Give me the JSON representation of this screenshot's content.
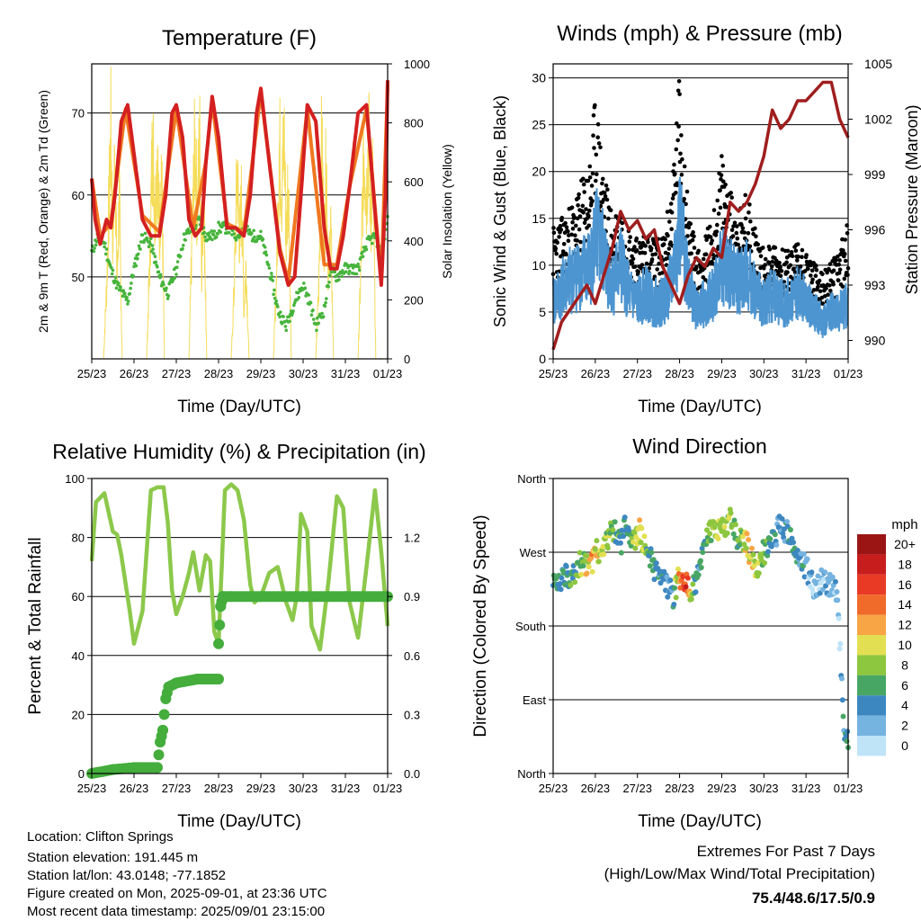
{
  "chart_data": [
    {
      "type": "line",
      "title": "Temperature (F)",
      "xlabel": "Time (Day/UTC)",
      "ylabel": "2m & 9m T (Red, Orange) & 2m Td (Green)",
      "y2label": "Solar Insolation (Yellow)",
      "x_ticks": [
        "25/23",
        "26/23",
        "27/23",
        "28/23",
        "29/23",
        "30/23",
        "31/23",
        "01/23"
      ],
      "ylim": [
        40,
        76
      ],
      "y_ticks": [
        50,
        60,
        70
      ],
      "y2lim": [
        0,
        1000
      ],
      "y2_ticks": [
        0,
        200,
        400,
        600,
        800,
        1000
      ],
      "grid": true,
      "colors": {
        "t2m": "#d42020",
        "t9m": "#f07820",
        "td": "#46b43c",
        "solar": "#f5dc5a"
      },
      "series": [
        {
          "name": "2m T",
          "x": [
            0,
            0.08,
            0.2,
            0.35,
            0.45,
            0.55,
            0.7,
            0.85,
            1.0,
            1.2,
            1.4,
            1.6,
            1.75,
            1.9,
            2.0,
            2.15,
            2.3,
            2.45,
            2.6,
            2.7,
            2.85,
            3.0,
            3.2,
            3.4,
            3.6,
            3.75,
            3.9,
            4.0,
            4.2,
            4.45,
            4.65,
            4.8,
            4.95,
            5.1,
            5.3,
            5.5,
            5.65,
            5.8,
            5.95,
            6.1,
            6.3,
            6.5,
            6.7,
            6.85,
            6.95,
            7.0
          ],
          "values": [
            62,
            57,
            54,
            57,
            56,
            60,
            69,
            71,
            65,
            57,
            55,
            55,
            60,
            70,
            71,
            67,
            57,
            55,
            56,
            64,
            72,
            67,
            56,
            56,
            55,
            60,
            70,
            73,
            64,
            53,
            49,
            50,
            60,
            71,
            69,
            56,
            51,
            51,
            55,
            61,
            70,
            71,
            58,
            49,
            60,
            74
          ]
        },
        {
          "name": "9m T",
          "x": [
            0,
            0.2,
            0.45,
            0.8,
            1.2,
            1.6,
            2.0,
            2.4,
            2.7,
            2.85,
            3.2,
            3.6,
            4.0,
            4.45,
            4.65,
            5.1,
            5.5,
            5.8,
            6.1,
            6.5,
            6.85,
            7.0
          ],
          "values": [
            62,
            55,
            56.5,
            70.5,
            57.5,
            55.5,
            70.5,
            56,
            64,
            71.5,
            56.5,
            55.5,
            72.5,
            53.5,
            49.5,
            70.5,
            51.5,
            51.5,
            61,
            70.5,
            49.5,
            73.5
          ]
        },
        {
          "name": "2m Td",
          "x": [
            0,
            0.15,
            0.3,
            0.45,
            0.6,
            0.85,
            1.0,
            1.2,
            1.4,
            1.6,
            1.8,
            2.0,
            2.2,
            2.4,
            2.55,
            2.7,
            2.9,
            3.0,
            3.2,
            3.4,
            3.6,
            3.8,
            4.0,
            4.2,
            4.4,
            4.6,
            4.8,
            5.0,
            5.15,
            5.3,
            5.5,
            5.65,
            5.8,
            6.0,
            6.3,
            6.5,
            6.7,
            6.85,
            7.0
          ],
          "values": [
            53,
            55,
            54,
            51,
            49,
            47,
            51,
            55,
            54,
            50,
            48,
            51,
            55,
            56,
            57,
            55,
            55,
            56,
            56,
            55,
            56,
            55,
            55,
            51,
            46,
            44,
            47,
            49,
            47,
            44,
            46,
            51,
            50,
            51,
            51,
            54,
            55,
            53,
            57
          ]
        },
        {
          "name": "Solar Insolation",
          "axis": "y2",
          "x": [
            0,
            0.28,
            0.35,
            0.4,
            0.45,
            0.5,
            0.55,
            0.6,
            0.65,
            0.72,
            1.0,
            1.3,
            1.37,
            1.44,
            1.5,
            1.55,
            1.6,
            1.65,
            1.72,
            2.0,
            2.3,
            2.37,
            2.44,
            2.5,
            2.55,
            2.6,
            2.65,
            2.72,
            3.0,
            3.3,
            3.37,
            3.44,
            3.5,
            3.55,
            3.6,
            3.65,
            3.72,
            4.0,
            4.3,
            4.37,
            4.44,
            4.5,
            4.55,
            4.6,
            4.65,
            4.72,
            5.0,
            5.3,
            5.37,
            5.44,
            5.5,
            5.55,
            5.6,
            5.65,
            5.72,
            6.0,
            6.3,
            6.37,
            6.44,
            6.5,
            6.55,
            6.6,
            6.65,
            6.72,
            7.0
          ],
          "values": [
            0,
            0,
            300,
            600,
            950,
            500,
            900,
            300,
            700,
            0,
            0,
            0,
            400,
            950,
            600,
            900,
            500,
            850,
            0,
            0,
            0,
            500,
            900,
            600,
            950,
            400,
            700,
            0,
            0,
            0,
            300,
            800,
            500,
            700,
            200,
            400,
            0,
            0,
            0,
            350,
            900,
            700,
            950,
            500,
            800,
            0,
            0,
            0,
            300,
            900,
            500,
            850,
            300,
            600,
            0,
            0,
            0,
            400,
            900,
            700,
            950,
            600,
            800,
            0,
            0
          ]
        }
      ]
    },
    {
      "type": "scatter",
      "title": "Winds (mph) & Pressure (mb)",
      "xlabel": "Time (Day/UTC)",
      "ylabel": "Sonic Wind & Gust (Blue, Black)",
      "y2label": "Station Pressure (Maroon)",
      "x_ticks": [
        "25/23",
        "26/23",
        "27/23",
        "28/23",
        "29/23",
        "30/23",
        "31/23",
        "01/23"
      ],
      "ylim": [
        0,
        31.5
      ],
      "y_ticks": [
        0,
        5,
        10,
        15,
        20,
        25,
        30
      ],
      "y2lim": [
        989,
        1005
      ],
      "y2_ticks": [
        990,
        993,
        996,
        999,
        1002,
        1005
      ],
      "grid": true,
      "colors": {
        "wind": "#4d95d0",
        "gust": "#000000",
        "pressure": "#a01e1e"
      },
      "series": [
        {
          "name": "Sonic Wind",
          "x": [
            0,
            0.3,
            0.6,
            0.9,
            1.0,
            1.2,
            1.4,
            1.6,
            1.8,
            2.0,
            2.2,
            2.4,
            2.6,
            2.8,
            3.0,
            3.2,
            3.4,
            3.6,
            3.8,
            4.0,
            4.2,
            4.4,
            4.6,
            4.8,
            5.0,
            5.2,
            5.4,
            5.6,
            5.8,
            6.0,
            6.2,
            6.4,
            6.6,
            6.8,
            7.0
          ],
          "values": [
            6,
            8,
            9,
            10,
            13,
            11,
            8,
            10,
            7,
            6,
            7,
            6,
            6,
            8,
            14,
            9,
            5,
            6,
            7,
            10,
            9,
            8,
            9,
            7,
            6,
            7,
            6,
            6,
            7,
            6,
            5,
            4,
            5,
            5,
            6
          ]
        },
        {
          "name": "Gust",
          "x": [
            0,
            0.3,
            0.6,
            0.9,
            1.0,
            1.2,
            1.4,
            1.6,
            1.8,
            2.0,
            2.2,
            2.4,
            2.6,
            2.8,
            3.0,
            3.2,
            3.4,
            3.6,
            3.8,
            4.0,
            4.2,
            4.4,
            4.6,
            4.8,
            5.0,
            5.2,
            5.4,
            5.6,
            5.8,
            6.0,
            6.2,
            6.4,
            6.6,
            6.8,
            7.0
          ],
          "values": [
            11,
            12,
            14,
            17,
            22,
            16,
            12,
            13,
            11,
            10,
            11,
            10,
            10,
            14,
            24,
            13,
            9,
            10,
            12,
            17,
            14,
            12,
            14,
            11,
            9,
            10,
            9,
            9,
            10,
            9,
            8,
            7,
            8,
            9,
            12
          ]
        },
        {
          "name": "Station Pressure",
          "axis": "y2",
          "x": [
            0,
            0.2,
            0.5,
            0.8,
            1.0,
            1.2,
            1.4,
            1.6,
            1.8,
            2.0,
            2.2,
            2.4,
            2.6,
            2.8,
            3.0,
            3.2,
            3.4,
            3.6,
            3.8,
            4.0,
            4.2,
            4.4,
            4.6,
            4.8,
            5.0,
            5.2,
            5.4,
            5.6,
            5.8,
            6.0,
            6.2,
            6.4,
            6.6,
            6.8,
            7.0
          ],
          "values": [
            989.5,
            991,
            992,
            993,
            992,
            993.5,
            995,
            997,
            996,
            996.5,
            995.5,
            996,
            994,
            993,
            992,
            993.5,
            994.5,
            994,
            995,
            994.5,
            997.5,
            997,
            997.5,
            998.5,
            1000,
            1002.5,
            1001.5,
            1002,
            1003,
            1003,
            1003.5,
            1004,
            1004,
            1002,
            1001
          ]
        }
      ]
    },
    {
      "type": "line",
      "title": "Relative Humidity (%) & Precipitation (in)",
      "xlabel": "Time (Day/UTC)",
      "ylabel": "Percent & Total Rainfall",
      "x_ticks": [
        "25/23",
        "26/23",
        "27/23",
        "28/23",
        "29/23",
        "30/23",
        "31/23",
        "01/23"
      ],
      "ylim": [
        0,
        100
      ],
      "y_ticks": [
        0,
        20,
        40,
        60,
        80,
        100
      ],
      "y2lim": [
        0,
        1.5
      ],
      "y2_ticks": [
        "0.0",
        "0.3",
        "0.6",
        "0.9",
        "1.2"
      ],
      "grid": true,
      "colors": {
        "rh": "#8cc84b",
        "rain": "#44ad3c"
      },
      "series": [
        {
          "name": "Relative Humidity",
          "x": [
            0,
            0.1,
            0.3,
            0.5,
            0.6,
            0.7,
            0.9,
            1.0,
            1.2,
            1.4,
            1.55,
            1.7,
            1.8,
            1.9,
            2.0,
            2.15,
            2.3,
            2.4,
            2.55,
            2.7,
            2.8,
            2.9,
            3.0,
            3.15,
            3.3,
            3.45,
            3.6,
            3.75,
            3.85,
            4.0,
            4.2,
            4.4,
            4.6,
            4.75,
            4.85,
            4.95,
            5.1,
            5.2,
            5.4,
            5.6,
            5.8,
            5.95,
            6.1,
            6.3,
            6.5,
            6.7,
            6.85,
            7.0
          ],
          "values": [
            72,
            92,
            95,
            82,
            81,
            74,
            55,
            44,
            55,
            96,
            97,
            97,
            85,
            62,
            54,
            60,
            68,
            75,
            62,
            74,
            72,
            48,
            44,
            96,
            98,
            96,
            86,
            64,
            58,
            60,
            68,
            70,
            58,
            52,
            60,
            88,
            82,
            50,
            42,
            65,
            94,
            90,
            58,
            46,
            70,
            96,
            75,
            50
          ]
        },
        {
          "name": "Total Rainfall",
          "axis": "y2",
          "x": [
            0,
            0.5,
            1.0,
            1.55,
            1.62,
            1.68,
            1.75,
            1.82,
            2.0,
            2.5,
            3.0
          ],
          "values": [
            0,
            0.02,
            0.03,
            0.03,
            0.16,
            0.22,
            0.38,
            0.44,
            0.46,
            0.48,
            0.48
          ]
        },
        {
          "name": "Total Rainfall 2",
          "axis": "y2",
          "x": [
            3.0,
            3.05,
            3.1,
            3.3,
            4.0,
            5.0,
            6.0,
            7.0
          ],
          "values": [
            0.66,
            0.85,
            0.9,
            0.9,
            0.9,
            0.9,
            0.9,
            0.9
          ]
        }
      ]
    },
    {
      "type": "scatter",
      "title": "Wind Direction",
      "xlabel": "Time (Day/UTC)",
      "ylabel": "Direction (Colored By Speed)",
      "x_ticks": [
        "25/23",
        "26/23",
        "27/23",
        "28/23",
        "29/23",
        "30/23",
        "31/23",
        "01/23"
      ],
      "y_ticks": [
        "North",
        "East",
        "South",
        "West",
        "North"
      ],
      "ylim": [
        0,
        360
      ],
      "grid": true,
      "legend": {
        "title": "mph",
        "levels": [
          "20+",
          "18",
          "16",
          "14",
          "12",
          "10",
          "8",
          "6",
          "4",
          "2",
          "0"
        ],
        "colors": [
          "#9b1515",
          "#c81d1d",
          "#e83a25",
          "#f06a2a",
          "#f8a545",
          "#e3df52",
          "#8dc63f",
          "#48a664",
          "#3d87c1",
          "#75b3e0",
          "#bfe3f7"
        ]
      },
      "series": [
        {
          "name": "Direction",
          "x": [
            0.1,
            0.3,
            0.5,
            0.7,
            0.9,
            1.0,
            1.2,
            1.4,
            1.6,
            1.75,
            1.9,
            2.05,
            2.2,
            2.35,
            2.5,
            2.7,
            2.85,
            3.0,
            3.15,
            3.3,
            3.45,
            3.6,
            3.8,
            4.0,
            4.2,
            4.4,
            4.6,
            4.8,
            5.0,
            5.2,
            5.4,
            5.6,
            5.8,
            6.0,
            6.1,
            6.2,
            6.4,
            6.6,
            6.75,
            6.9,
            7.0
          ],
          "values": [
            230,
            240,
            245,
            260,
            250,
            275,
            270,
            300,
            280,
            310,
            280,
            295,
            275,
            260,
            235,
            230,
            215,
            240,
            230,
            220,
            245,
            290,
            300,
            295,
            310,
            285,
            280,
            250,
            270,
            280,
            305,
            290,
            265,
            250,
            240,
            225,
            235,
            230,
            220,
            60,
            40
          ],
          "speeds": [
            6,
            5,
            7,
            9,
            13,
            11,
            10,
            8,
            6,
            5,
            9,
            12,
            8,
            6,
            5,
            4,
            6,
            14,
            17,
            9,
            5,
            6,
            10,
            11,
            9,
            7,
            12,
            11,
            8,
            5,
            4,
            6,
            5,
            4,
            3,
            2,
            3,
            4,
            2,
            5,
            6
          ]
        }
      ]
    }
  ],
  "info": {
    "location": "Location: Clifton Springs",
    "elevation": "Station elevation: 191.445 m",
    "latlon": "Station lat/lon: 43.0148; -77.1852",
    "created": "Figure created on Mon, 2025-09-01, at 23:36 UTC",
    "recent": "Most recent data timestamp: 2025/09/01 23:15:00"
  },
  "extremes": {
    "title": "Extremes For Past 7 Days",
    "subtitle": "(High/Low/Max Wind/Total Precipitation)",
    "values": "75.4/48.6/17.5/0.9",
    "color": "#c0272d"
  }
}
